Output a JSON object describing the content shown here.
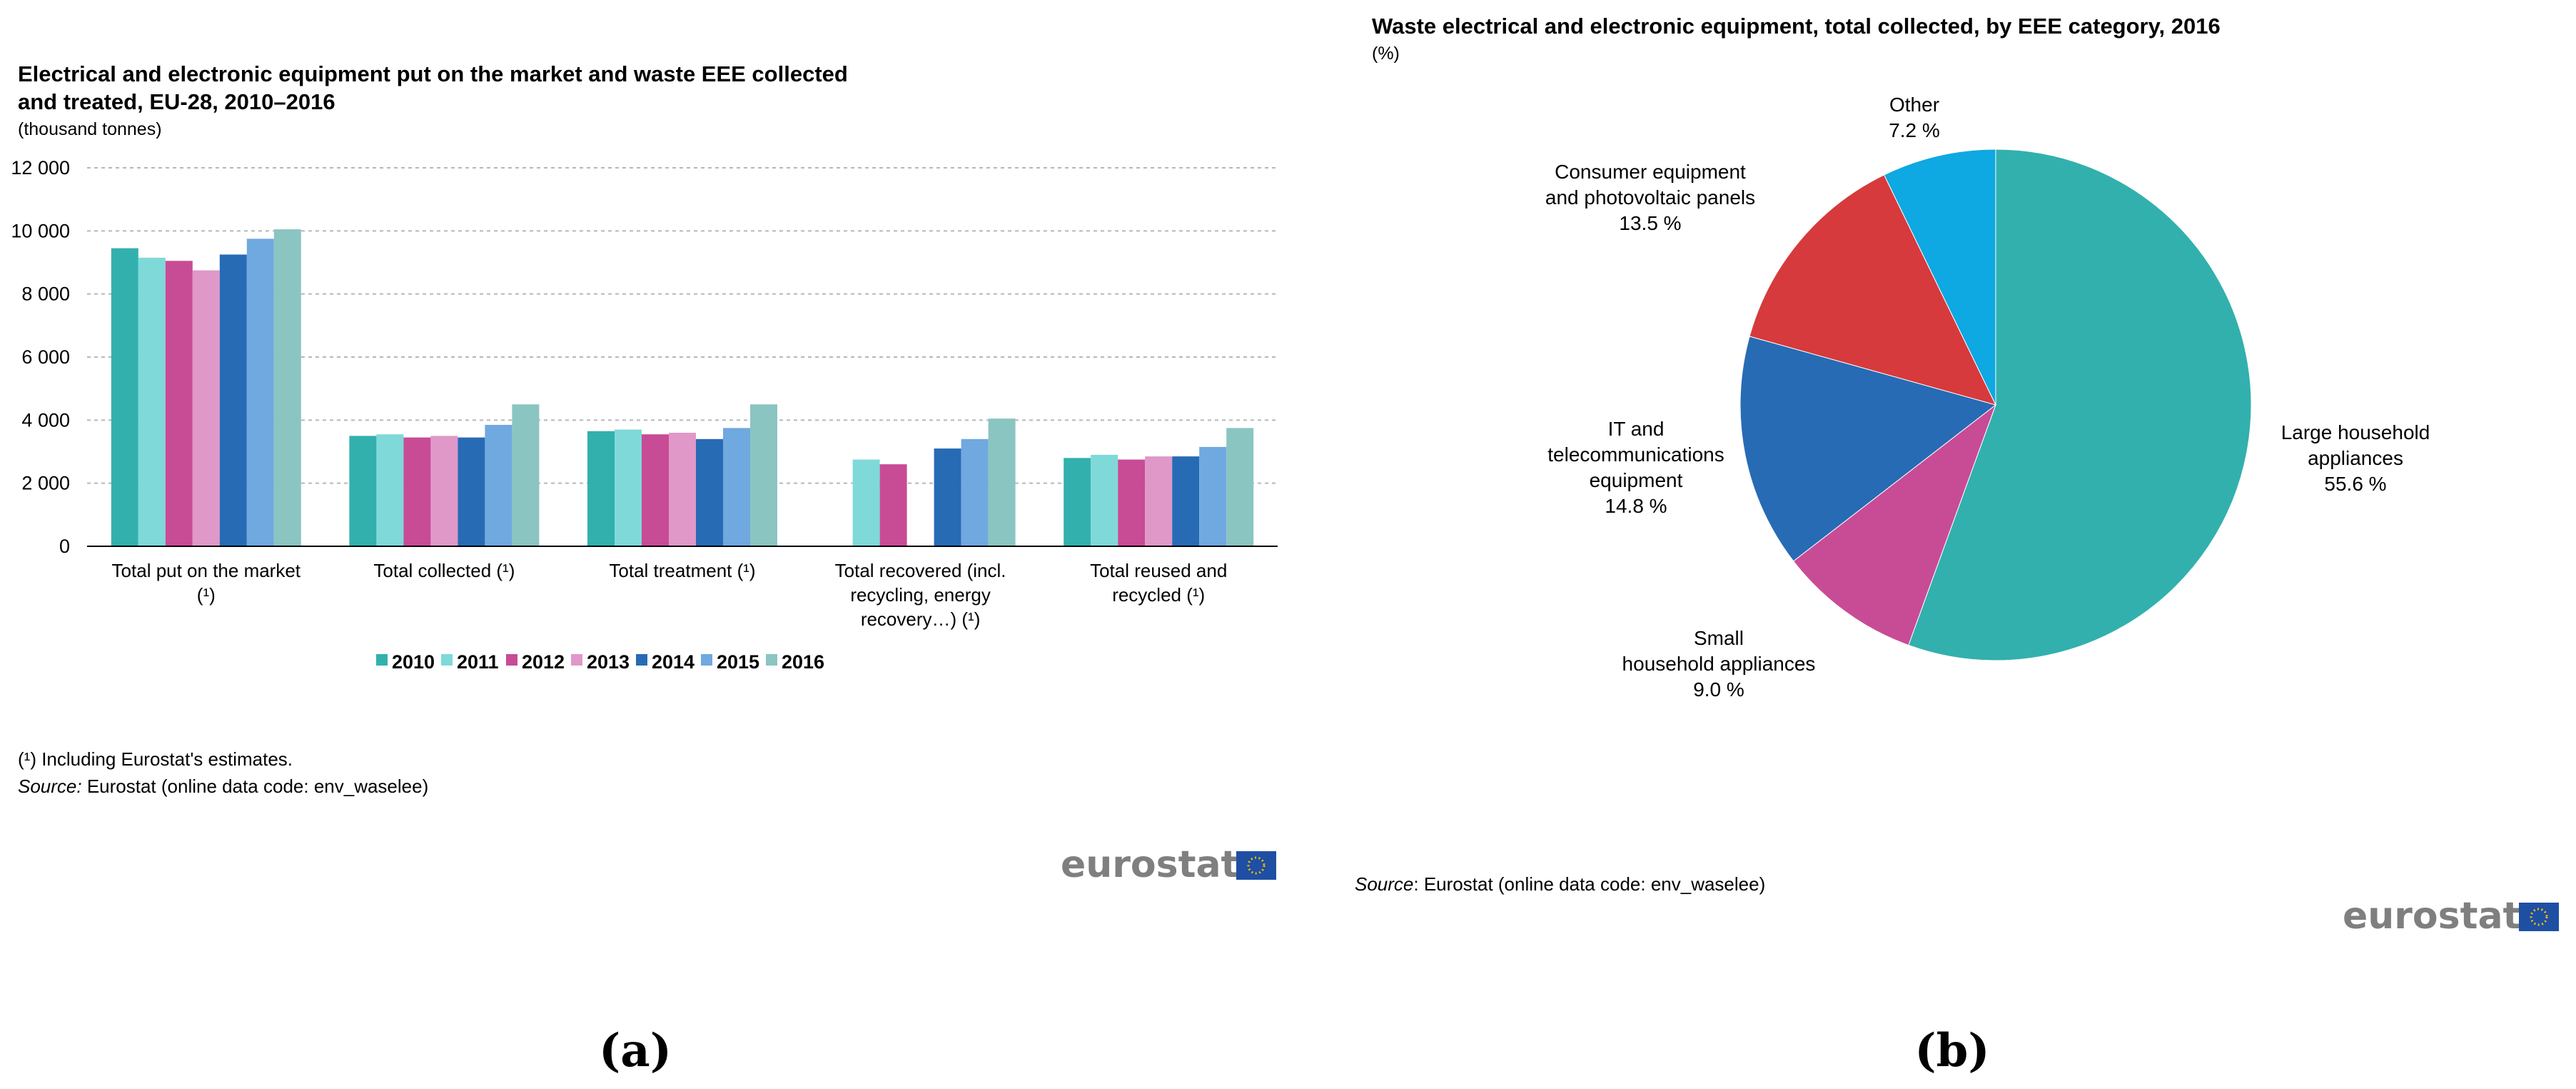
{
  "chart_data": [
    {
      "type": "bar",
      "title_lines": [
        "Electrical and electronic equipment put on the market and waste EEE collected",
        "and treated, EU-28, 2010–2016"
      ],
      "unit": "(thousand tonnes)",
      "categories": [
        [
          "Total put on the market",
          "(¹)"
        ],
        [
          "Total collected (¹)"
        ],
        [
          "Total treatment (¹)"
        ],
        [
          "Total recovered  (incl.",
          "recycling, energy",
          "recovery…)   (¹)"
        ],
        [
          "Total reused and",
          "recycled (¹)"
        ]
      ],
      "series": [
        {
          "name": "2010",
          "color": "#32b0ad",
          "values": [
            9450,
            3500,
            3650,
            null,
            2800
          ]
        },
        {
          "name": "2011",
          "color": "#7fd9d9",
          "values": [
            9150,
            3550,
            3700,
            2750,
            2900
          ]
        },
        {
          "name": "2012",
          "color": "#c84b96",
          "values": [
            9050,
            3450,
            3550,
            2600,
            2750
          ]
        },
        {
          "name": "2013",
          "color": "#e098c8",
          "values": [
            8750,
            3500,
            3600,
            null,
            2850
          ]
        },
        {
          "name": "2014",
          "color": "#276bb5",
          "values": [
            9250,
            3450,
            3400,
            3100,
            2850
          ]
        },
        {
          "name": "2015",
          "color": "#70a8e0",
          "values": [
            9750,
            3850,
            3750,
            3400,
            3150
          ]
        },
        {
          "name": "2016",
          "color": "#8ac5c2",
          "values": [
            10050,
            4500,
            4500,
            4050,
            3750
          ]
        }
      ],
      "y_ticks": [
        0,
        2000,
        4000,
        6000,
        8000,
        10000,
        12000
      ],
      "y_tick_labels": [
        "0",
        "2 000",
        "4 000",
        "6 000",
        "8 000",
        "10 000",
        "12 000"
      ],
      "ylim": [
        0,
        12000
      ],
      "grid": true,
      "legend_position": "bottom",
      "footnote": "(¹) Including Eurostat's estimates.",
      "source_label": "Source:",
      "source_text": " Eurostat (online data code: env_waselee)",
      "brand": "eurostat",
      "panel_label": "(a)"
    },
    {
      "type": "pie",
      "title": "Waste electrical and electronic equipment, total collected, by EEE category, 2016",
      "unit": "(%)",
      "slices": [
        {
          "label_lines": [
            "Large household",
            "appliances"
          ],
          "value": 55.6,
          "value_label": "55.6 %",
          "color": "#32b0ad"
        },
        {
          "label_lines": [
            "Small",
            "household appliances"
          ],
          "value": 9.0,
          "value_label": "9.0 %",
          "color": "#c84b96"
        },
        {
          "label_lines": [
            "IT and",
            "telecommunications",
            "equipment"
          ],
          "value": 14.8,
          "value_label": "14.8 %",
          "color": "#276bb5"
        },
        {
          "label_lines": [
            "Consumer equipment",
            "and photovoltaic panels"
          ],
          "value": 13.5,
          "value_label": "13.5 %",
          "color": "#d63a3c"
        },
        {
          "label_lines": [
            "Other"
          ],
          "value": 7.2,
          "value_label": "7.2 %",
          "color": "#0ea8e2"
        }
      ],
      "source_label": "Source",
      "source_text": ": Eurostat (online data code: env_waselee)",
      "brand": "eurostat",
      "panel_label": "(b)"
    }
  ]
}
